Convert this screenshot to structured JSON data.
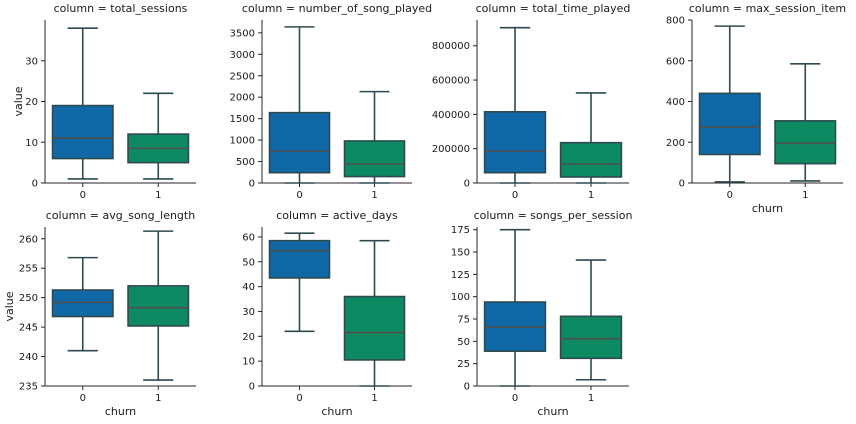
{
  "colors": {
    "churn_0": "#1068a6",
    "churn_1": "#0e8a63",
    "whisker": "#2e4a4e",
    "median": "#4f4f4f"
  },
  "labels": {
    "ylabel": "value",
    "xlabel": "churn"
  },
  "chart_data": [
    {
      "type": "box",
      "title": "column = total_sessions",
      "categories": [
        "0",
        "1"
      ],
      "ylim": [
        0,
        40
      ],
      "yticks": [
        0,
        10,
        20,
        30
      ],
      "boxes": [
        {
          "category": "0",
          "whislo": 1,
          "q1": 6,
          "median": 11,
          "q3": 19,
          "whishi": 38
        },
        {
          "category": "1",
          "whislo": 1,
          "q1": 5,
          "median": 8.5,
          "q3": 12,
          "whishi": 22
        }
      ]
    },
    {
      "type": "box",
      "title": "column = number_of_song_played",
      "categories": [
        "0",
        "1"
      ],
      "ylim": [
        0,
        3800
      ],
      "yticks": [
        0,
        500,
        1000,
        1500,
        2000,
        2500,
        3000,
        3500
      ],
      "boxes": [
        {
          "category": "0",
          "whislo": 0,
          "q1": 240,
          "median": 740,
          "q3": 1640,
          "whishi": 3640
        },
        {
          "category": "1",
          "whislo": 0,
          "q1": 150,
          "median": 440,
          "q3": 980,
          "whishi": 2130
        }
      ]
    },
    {
      "type": "box",
      "title": "column = total_time_played",
      "categories": [
        "0",
        "1"
      ],
      "ylim": [
        0,
        950000
      ],
      "yticks": [
        0,
        200000,
        400000,
        600000,
        800000
      ],
      "boxes": [
        {
          "category": "0",
          "whislo": 0,
          "q1": 60000,
          "median": 185000,
          "q3": 415000,
          "whishi": 905000
        },
        {
          "category": "1",
          "whislo": 0,
          "q1": 35000,
          "median": 110000,
          "q3": 235000,
          "whishi": 525000
        }
      ]
    },
    {
      "type": "box",
      "title": "column = max_session_item",
      "categories": [
        "0",
        "1"
      ],
      "ylim": [
        0,
        800
      ],
      "yticks": [
        0,
        200,
        400,
        600,
        800
      ],
      "boxes": [
        {
          "category": "0",
          "whislo": 5,
          "q1": 140,
          "median": 275,
          "q3": 440,
          "whishi": 770
        },
        {
          "category": "1",
          "whislo": 10,
          "q1": 95,
          "median": 195,
          "q3": 305,
          "whishi": 585
        }
      ]
    },
    {
      "type": "box",
      "title": "column = avg_song_length",
      "categories": [
        "0",
        "1"
      ],
      "ylim": [
        235,
        262
      ],
      "yticks": [
        235,
        240,
        245,
        250,
        255,
        260
      ],
      "boxes": [
        {
          "category": "0",
          "whislo": 241,
          "q1": 246.8,
          "median": 249.2,
          "q3": 251.3,
          "whishi": 256.8
        },
        {
          "category": "1",
          "whislo": 236,
          "q1": 245.2,
          "median": 248.3,
          "q3": 252,
          "whishi": 261.3
        }
      ]
    },
    {
      "type": "box",
      "title": "column = active_days",
      "categories": [
        "0",
        "1"
      ],
      "ylim": [
        0,
        64
      ],
      "yticks": [
        0,
        10,
        20,
        30,
        40,
        50,
        60
      ],
      "boxes": [
        {
          "category": "0",
          "whislo": 22,
          "q1": 43.5,
          "median": 54.5,
          "q3": 58.5,
          "whishi": 61.5
        },
        {
          "category": "1",
          "whislo": 0,
          "q1": 10.5,
          "median": 21.5,
          "q3": 36,
          "whishi": 58.5
        }
      ]
    },
    {
      "type": "box",
      "title": "column = songs_per_session",
      "categories": [
        "0",
        "1"
      ],
      "ylim": [
        0,
        178
      ],
      "yticks": [
        0,
        25,
        50,
        75,
        100,
        125,
        150,
        175
      ],
      "boxes": [
        {
          "category": "0",
          "whislo": 0,
          "q1": 39,
          "median": 66,
          "q3": 94,
          "whishi": 175
        },
        {
          "category": "1",
          "whislo": 7,
          "q1": 31,
          "median": 53,
          "q3": 78,
          "whishi": 141
        }
      ]
    }
  ]
}
